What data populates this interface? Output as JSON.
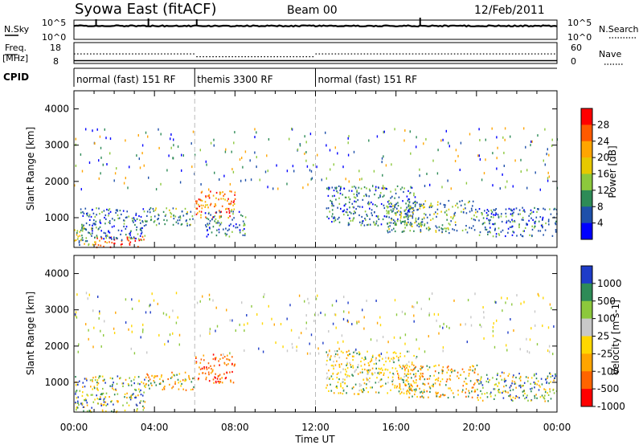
{
  "header": {
    "radar": "Syowa East (fitACF)",
    "beam": "Beam 00",
    "date": "12/Feb/2011"
  },
  "strips": {
    "nsky_label": "N.Sky",
    "nsky_ticks": [
      "10^5",
      "10^0"
    ],
    "nsearch_label": "N.Search",
    "nsearch_ticks": [
      "10^5",
      "10^0"
    ],
    "freq_label": "Freq.",
    "freq_unit": "[MHz]",
    "freq_ticks": [
      "18",
      "8"
    ],
    "nave_label": "Nave",
    "nave_ticks": [
      "60",
      "0"
    ],
    "cpid_label": "CPID"
  },
  "cpid_segments": [
    {
      "label": "normal (fast) 151 RF",
      "start_h": 0,
      "end_h": 6
    },
    {
      "label": "themis 3300 RF",
      "start_h": 6,
      "end_h": 12
    },
    {
      "label": "normal (fast) 151 RF",
      "start_h": 12,
      "end_h": 24
    }
  ],
  "xaxis": {
    "label": "Time UT",
    "ticks": [
      "00:00",
      "04:00",
      "08:00",
      "12:00",
      "16:00",
      "20:00",
      "00:00"
    ]
  },
  "chart_data": [
    {
      "type": "heatmap",
      "title": "",
      "xlabel": "Time UT",
      "ylabel": "Slant Range [km]",
      "xlim": [
        0,
        24
      ],
      "ylim": [
        180,
        4500
      ],
      "yticks": [
        "4000",
        "3000",
        "2000",
        "1000"
      ],
      "colorbar": {
        "label": "Power [dB]",
        "ticks": [
          "28",
          "24",
          "20",
          "16",
          "12",
          "8",
          "4"
        ],
        "colors": [
          "#ff0000",
          "#ff5a00",
          "#ffa500",
          "#e6c800",
          "#8cc83c",
          "#2e8b57",
          "#1e50aa",
          "#0000ff"
        ]
      },
      "echo_regions": [
        {
          "t": [
            0.0,
            1.0
          ],
          "r": [
            250,
            900
          ],
          "level": "mid"
        },
        {
          "t": [
            1.0,
            3.5
          ],
          "r": [
            200,
            500
          ],
          "level": "high"
        },
        {
          "t": [
            0.3,
            3.5
          ],
          "r": [
            400,
            1300
          ],
          "level": "low"
        },
        {
          "t": [
            3.5,
            6.0
          ],
          "r": [
            800,
            1300
          ],
          "level": "low-mid"
        },
        {
          "t": [
            6.0,
            8.0
          ],
          "r": [
            1000,
            1800
          ],
          "level": "high"
        },
        {
          "t": [
            6.5,
            8.5
          ],
          "r": [
            500,
            1200
          ],
          "level": "low"
        },
        {
          "t": [
            12.5,
            17.0
          ],
          "r": [
            800,
            1900
          ],
          "level": "low"
        },
        {
          "t": [
            15.5,
            20.0
          ],
          "r": [
            600,
            1500
          ],
          "level": "low-mid"
        },
        {
          "t": [
            20.0,
            24.0
          ],
          "r": [
            500,
            1300
          ],
          "level": "low"
        }
      ]
    },
    {
      "type": "heatmap",
      "title": "",
      "xlabel": "Time UT",
      "ylabel": "Slant Range [km]",
      "xlim": [
        0,
        24
      ],
      "ylim": [
        180,
        4500
      ],
      "yticks": [
        "4000",
        "3000",
        "2000",
        "1000"
      ],
      "colorbar": {
        "label": "Velocity [m s-1]",
        "ticks": [
          "1000",
          "500",
          "100",
          "25",
          "-25",
          "-100",
          "-500",
          "-1000"
        ],
        "colors": [
          "#1e3cc8",
          "#2e8b57",
          "#8cc83c",
          "#c8c8c8",
          "#ffd700",
          "#ffa500",
          "#ff6400",
          "#ff0000"
        ]
      },
      "echo_regions": [
        {
          "t": [
            0.0,
            3.5
          ],
          "r": [
            200,
            1200
          ],
          "level": "positive"
        },
        {
          "t": [
            3.5,
            6.0
          ],
          "r": [
            800,
            1300
          ],
          "level": "negative"
        },
        {
          "t": [
            6.0,
            8.0
          ],
          "r": [
            1000,
            1800
          ],
          "level": "strong-negative"
        },
        {
          "t": [
            12.5,
            17.0
          ],
          "r": [
            700,
            1900
          ],
          "level": "weak-negative"
        },
        {
          "t": [
            16.0,
            20.0
          ],
          "r": [
            600,
            1500
          ],
          "level": "negative"
        },
        {
          "t": [
            20.0,
            24.0
          ],
          "r": [
            500,
            1300
          ],
          "level": "positive"
        }
      ]
    }
  ]
}
